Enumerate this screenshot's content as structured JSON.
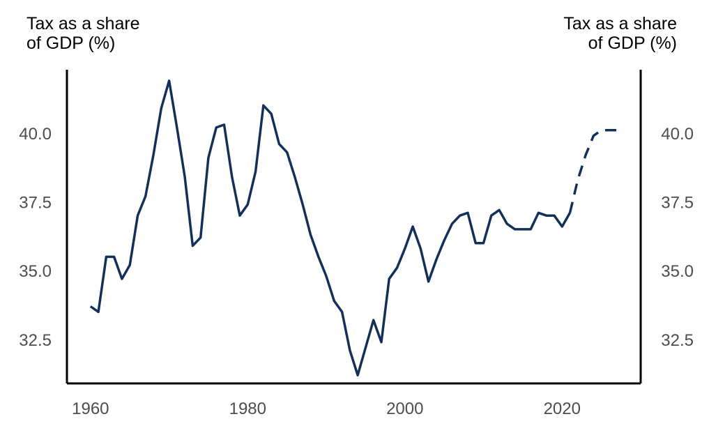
{
  "chart_data": {
    "type": "line",
    "ylabel_left": [
      "Tax as a share",
      "of GDP (%)"
    ],
    "ylabel_right": [
      "Tax as a share",
      "of GDP (%)"
    ],
    "xlim": [
      1957,
      2030
    ],
    "ylim": [
      30.9,
      42.3
    ],
    "x_ticks": [
      1960,
      1980,
      2000,
      2020
    ],
    "y_ticks": [
      32.5,
      35.0,
      37.5,
      40.0
    ],
    "y_tick_labels": [
      "32.5",
      "35.0",
      "37.5",
      "40.0"
    ],
    "grid": false,
    "line_color": "#12305a",
    "series": [
      {
        "style": "solid",
        "x": [
          1960,
          1961,
          1962,
          1963,
          1964,
          1965,
          1966,
          1967,
          1968,
          1969,
          1970,
          1971,
          1972,
          1973,
          1974,
          1975,
          1976,
          1977,
          1978,
          1979,
          1980,
          1981,
          1982,
          1983,
          1984,
          1985,
          1986,
          1987,
          1988,
          1989,
          1990,
          1991,
          1992,
          1993,
          1994,
          1995,
          1996,
          1997,
          1998,
          1999,
          2000,
          2001,
          2002,
          2003,
          2004,
          2005,
          2006,
          2007,
          2008,
          2009,
          2010,
          2011,
          2012,
          2013,
          2014,
          2015,
          2016,
          2017,
          2018,
          2019,
          2020,
          2021
        ],
        "values": [
          33.7,
          33.5,
          35.5,
          35.5,
          34.7,
          35.2,
          37.0,
          37.7,
          39.2,
          40.9,
          41.9,
          40.2,
          38.4,
          35.9,
          36.2,
          39.1,
          40.2,
          40.3,
          38.4,
          37.0,
          37.4,
          38.6,
          41.0,
          40.7,
          39.6,
          39.3,
          38.4,
          37.4,
          36.3,
          35.5,
          34.8,
          33.9,
          33.5,
          32.1,
          31.2,
          32.2,
          33.2,
          32.4,
          34.7,
          35.1,
          35.8,
          36.6,
          35.8,
          34.6,
          35.4,
          36.1,
          36.7,
          37.0,
          37.1,
          36.0,
          36.0,
          37.0,
          37.2,
          36.7,
          36.5,
          36.5,
          36.5,
          37.1,
          37.0,
          37.0,
          36.6,
          37.1
        ]
      },
      {
        "style": "dashed",
        "x": [
          2021,
          2022,
          2023,
          2024,
          2025,
          2026,
          2027
        ],
        "values": [
          37.1,
          38.3,
          39.2,
          39.9,
          40.1,
          40.1,
          40.1
        ]
      }
    ]
  }
}
